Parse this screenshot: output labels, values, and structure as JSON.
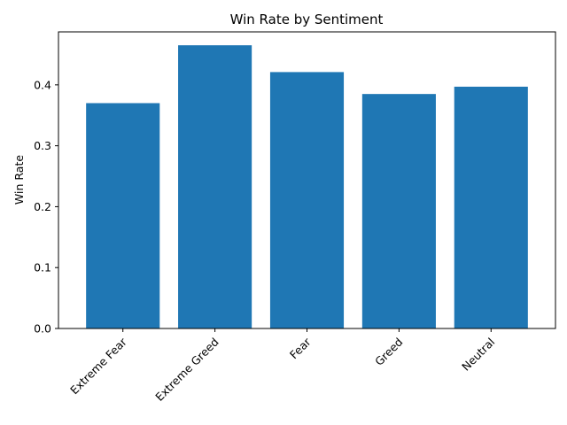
{
  "chart_data": {
    "type": "bar",
    "title": "Win Rate by Sentiment",
    "xlabel": "",
    "ylabel": "Win Rate",
    "categories": [
      "Extreme Fear",
      "Extreme Greed",
      "Fear",
      "Greed",
      "Neutral"
    ],
    "values": [
      0.37,
      0.465,
      0.421,
      0.385,
      0.397
    ],
    "ylim": [
      0,
      0.487
    ],
    "yticks": [
      "0.0",
      "0.1",
      "0.2",
      "0.3",
      "0.4"
    ],
    "ytick_values": [
      0.0,
      0.1,
      0.2,
      0.3,
      0.4
    ],
    "xtick_rotation_deg": 45,
    "bar_color": "#1f77b4",
    "grid": false,
    "legend": "none"
  }
}
